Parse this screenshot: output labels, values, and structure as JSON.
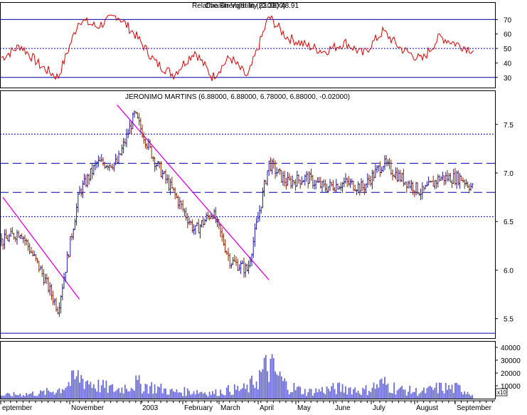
{
  "rsi_panel": {
    "title_overlap_a": "Relative Strength In (23.38) 48.91",
    "title_overlap_b": "Chaikin Volatility (0.0300)",
    "levels": [
      70,
      50,
      30
    ],
    "ticks": [
      "70",
      "60",
      "50",
      "40",
      "30"
    ]
  },
  "price_panel": {
    "title": "JERONIMO MARTINS (6.88000, 6.88000, 6.78000, 6.88000, -0.02000)",
    "ticks": [
      "7.5",
      "7.0",
      "6.5",
      "6.0",
      "5.5"
    ]
  },
  "volume_panel": {
    "ticks": [
      "40000",
      "30000",
      "20000",
      "10000"
    ],
    "multiplier": "x10"
  },
  "x_axis_labels": [
    "eptember",
    "November",
    "2003",
    "February",
    "March",
    "April",
    "May",
    "June",
    "July",
    "August",
    "September"
  ],
  "colors": {
    "up": "#1a1aa0",
    "down": "#8b2500",
    "rsi_line": "#dd0000",
    "trendline": "#e000e0",
    "level_line": "#0000aa",
    "volume_bar": "#6b6bd6"
  },
  "chart_data": [
    {
      "type": "line",
      "title": "Relative Strength In (23.38) 48.91",
      "y_range": [
        23,
        82
      ],
      "reference_lines": [
        70,
        50,
        30
      ],
      "x": [
        "2002-09-01",
        "2002-09-15",
        "2002-10-01",
        "2002-10-15",
        "2002-11-01",
        "2002-11-15",
        "2002-12-01",
        "2002-12-15",
        "2003-01-01",
        "2003-01-15",
        "2003-02-01",
        "2003-02-15",
        "2003-03-01",
        "2003-03-15",
        "2003-04-01",
        "2003-04-15",
        "2003-05-01",
        "2003-05-15",
        "2003-06-01",
        "2003-06-15",
        "2003-07-01",
        "2003-07-15",
        "2003-08-01",
        "2003-08-15",
        "2003-09-01",
        "2003-09-10"
      ],
      "values": [
        44,
        52,
        38,
        30,
        70,
        65,
        73,
        60,
        40,
        32,
        48,
        30,
        44,
        30,
        72,
        58,
        52,
        48,
        54,
        46,
        62,
        50,
        42,
        58,
        52,
        49
      ]
    },
    {
      "type": "line",
      "title": "JERONIMO MARTINS (6.88000, 6.88000, 6.78000, 6.88000, -0.02000)",
      "y_range": [
        5.3,
        7.85
      ],
      "horizontal_lines": {
        "dashed": [
          7.1,
          6.8
        ],
        "dotted": [
          7.4,
          6.55
        ],
        "solid": [
          5.35
        ]
      },
      "trendlines": [
        {
          "from": [
            "2002-09-01",
            6.75
          ],
          "to": [
            "2002-11-01",
            5.7
          ]
        },
        {
          "from": [
            "2002-12-01",
            7.7
          ],
          "to": [
            "2003-04-01",
            5.9
          ]
        }
      ],
      "x": [
        "2002-09-01",
        "2002-09-15",
        "2002-10-01",
        "2002-10-15",
        "2002-11-01",
        "2002-11-15",
        "2002-12-01",
        "2002-12-15",
        "2003-01-01",
        "2003-01-15",
        "2003-02-01",
        "2003-02-15",
        "2003-03-01",
        "2003-03-15",
        "2003-04-01",
        "2003-04-15",
        "2003-05-01",
        "2003-05-15",
        "2003-06-01",
        "2003-06-15",
        "2003-07-01",
        "2003-07-15",
        "2003-08-01",
        "2003-08-15",
        "2003-09-01",
        "2003-09-10"
      ],
      "values": [
        6.3,
        6.4,
        6.0,
        5.6,
        6.8,
        7.1,
        7.1,
        7.6,
        7.1,
        6.8,
        6.4,
        6.6,
        6.1,
        6.0,
        7.1,
        6.9,
        6.95,
        6.85,
        6.9,
        6.85,
        7.1,
        6.95,
        6.8,
        6.95,
        6.95,
        6.85
      ]
    },
    {
      "type": "bar",
      "title": "Volume",
      "y_range": [
        0,
        45000
      ],
      "x": [
        "2002-09-01",
        "2002-09-15",
        "2002-10-01",
        "2002-10-15",
        "2002-11-01",
        "2002-11-15",
        "2002-12-01",
        "2002-12-15",
        "2003-01-01",
        "2003-01-15",
        "2003-02-01",
        "2003-02-15",
        "2003-03-01",
        "2003-03-15",
        "2003-04-01",
        "2003-04-15",
        "2003-05-01",
        "2003-05-15",
        "2003-06-01",
        "2003-06-15",
        "2003-07-01",
        "2003-07-15",
        "2003-08-01",
        "2003-08-15",
        "2003-09-01",
        "2003-09-10"
      ],
      "values": [
        3000,
        4000,
        5000,
        8000,
        20000,
        12000,
        8000,
        14000,
        10000,
        6000,
        7000,
        5000,
        8000,
        9000,
        30000,
        12000,
        6000,
        8000,
        10000,
        7000,
        14000,
        8000,
        6000,
        10000,
        9000,
        5000
      ]
    }
  ]
}
